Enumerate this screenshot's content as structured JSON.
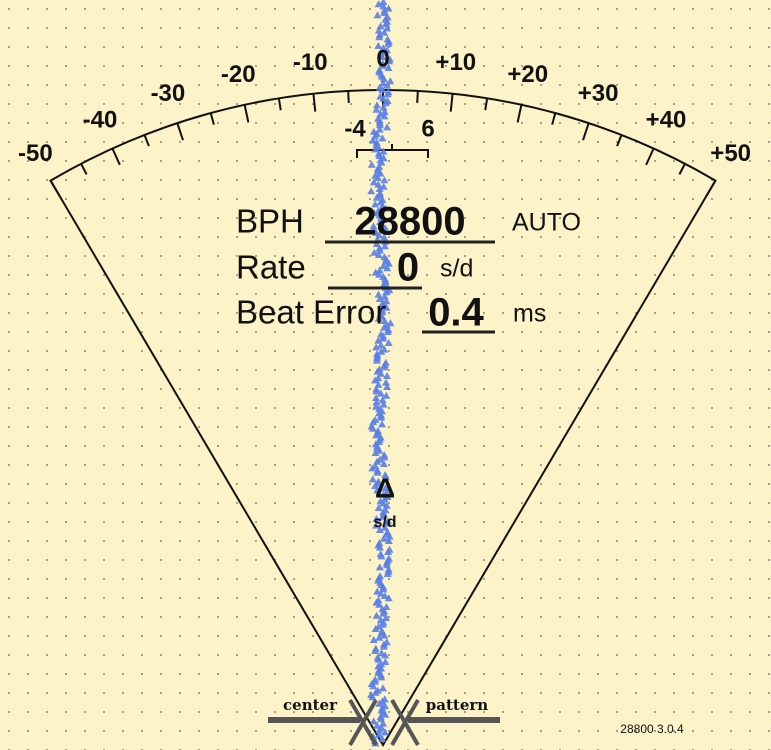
{
  "scale": {
    "labels": [
      "-50",
      "-40",
      "-30",
      "-20",
      "-10",
      "0",
      "+10",
      "+20",
      "+30",
      "+40",
      "+50"
    ],
    "window_labels": [
      "-4",
      "6"
    ]
  },
  "readout": {
    "bph_label": "BPH",
    "bph": 28800,
    "bph_mode": "AUTO",
    "rate_label": "Rate",
    "rate": 0,
    "rate_unit": "s/d",
    "beat_error_label": "Beat Error",
    "beat_error": 0.4,
    "beat_error_unit": "ms"
  },
  "delta": {
    "symbol": "Δ",
    "unit": "s/d"
  },
  "footer": {
    "center": "center",
    "pattern": "pattern",
    "version": "28800 3.0.4"
  }
}
